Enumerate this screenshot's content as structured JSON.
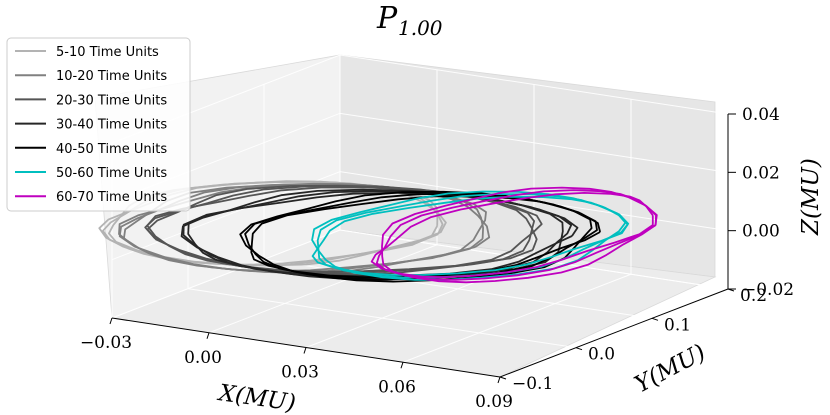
{
  "chart_data": {
    "type": "line3d",
    "title": "P",
    "title_sub": "1.00",
    "xlabel": "X(MU)",
    "ylabel": "Y(MU)",
    "zlabel": "Z(MU)",
    "xlim": [
      -0.03,
      0.09
    ],
    "ylim": [
      -0.1,
      0.2
    ],
    "zlim": [
      -0.02,
      0.04
    ],
    "xticks": [
      "−0.03",
      "0.00",
      "0.03",
      "0.06",
      "0.09"
    ],
    "yticks": [
      "−0.1",
      "0.0",
      "0.1",
      "0.2"
    ],
    "zticks": [
      "−0.02",
      "0.00",
      "0.02",
      "0.04"
    ],
    "grid": true,
    "legend_position": "top-left",
    "series": [
      {
        "name": "5-10 Time Units",
        "color": "#b3b3b3",
        "x_center": -0.015,
        "y_center": 0.05,
        "x_radius": 0.045,
        "y_radius": 0.11,
        "z_amp": 0.003
      },
      {
        "name": "10-20 Time Units",
        "color": "#808080",
        "x_center": -0.005,
        "y_center": 0.05,
        "x_radius": 0.05,
        "y_radius": 0.11,
        "z_amp": 0.004
      },
      {
        "name": "20-30 Time Units",
        "color": "#555555",
        "x_center": 0.005,
        "y_center": 0.06,
        "x_radius": 0.055,
        "y_radius": 0.1,
        "z_amp": 0.005
      },
      {
        "name": "30-40 Time Units",
        "color": "#262626",
        "x_center": 0.015,
        "y_center": 0.06,
        "x_radius": 0.055,
        "y_radius": 0.095,
        "z_amp": 0.006
      },
      {
        "name": "40-50 Time Units",
        "color": "#000000",
        "x_center": 0.025,
        "y_center": 0.07,
        "x_radius": 0.05,
        "y_radius": 0.085,
        "z_amp": 0.008
      },
      {
        "name": "50-60 Time Units",
        "color": "#00bfbf",
        "x_center": 0.035,
        "y_center": 0.09,
        "x_radius": 0.045,
        "y_radius": 0.07,
        "z_amp": 0.01
      },
      {
        "name": "60-70 Time Units",
        "color": "#bf00bf",
        "x_center": 0.045,
        "y_center": 0.11,
        "x_radius": 0.04,
        "y_radius": 0.065,
        "z_amp": 0.012
      }
    ]
  }
}
